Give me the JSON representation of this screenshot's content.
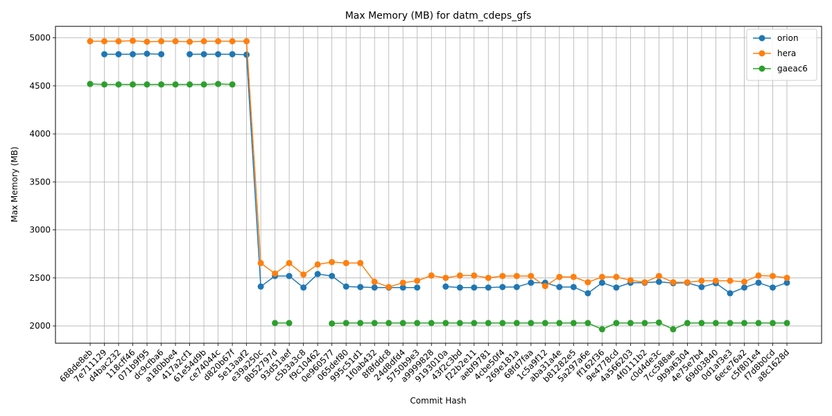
{
  "chart_data": {
    "type": "line",
    "title": "Max Memory (MB) for datm_cdeps_gfs",
    "xlabel": "Commit Hash",
    "ylabel": "Max Memory (MB)",
    "ylim": [
      1820,
      5120
    ],
    "yticks": [
      2000,
      2500,
      3000,
      3500,
      4000,
      4500,
      5000
    ],
    "grid": true,
    "legend_position": "top-right",
    "categories": [
      "688de8eb",
      "7e711129",
      "d4bac232",
      "118cff46",
      "071b9f95",
      "dc9cfba6",
      "a180bbe4",
      "417a2cf1",
      "61e54d9b",
      "ce74044c",
      "d820b67f",
      "5e13aaf2",
      "e39a250c",
      "8b52797d",
      "93d51aef",
      "c5b3a3c8",
      "f9c10462",
      "0e960577",
      "065def80",
      "995c51d1",
      "1f0ab432",
      "8f8fddc8",
      "24d8dfd4",
      "5750b9e3",
      "a9999828",
      "9193010a",
      "43f2c3bd",
      "f22b2e11",
      "aebf9781",
      "4cbe50f4",
      "269e181a",
      "68fd7faa",
      "1c5a9f12",
      "aba31a4e",
      "b81282e5",
      "5a297a6e",
      "ff162f36",
      "9e4778cd",
      "4a566203",
      "4f0111b2",
      "c0d4de3c",
      "7cc588ae",
      "9b9a6304",
      "4e75e7b4",
      "69d03840",
      "0d1af3e3",
      "6ece76a2",
      "c5f801e4",
      "f7d8b0cd",
      "a8c1628d"
    ],
    "series": [
      {
        "name": "orion",
        "color": "#1f77b4",
        "values": [
          null,
          4830,
          4830,
          4830,
          4835,
          4830,
          null,
          4830,
          4830,
          4830,
          4830,
          4825,
          2410,
          2520,
          2520,
          2400,
          2540,
          2520,
          2410,
          2405,
          2400,
          2400,
          2400,
          2400,
          null,
          2410,
          2400,
          2400,
          2400,
          2405,
          2405,
          2450,
          2450,
          2405,
          2405,
          2340,
          2450,
          2400,
          2450,
          2450,
          2460,
          2445,
          2450,
          2405,
          2445,
          2340,
          2400,
          2450,
          2400,
          2450
        ]
      },
      {
        "name": "hera",
        "color": "#ff7f0e",
        "values": [
          4965,
          4965,
          4965,
          4970,
          4960,
          4965,
          4965,
          4960,
          4965,
          4965,
          4965,
          4965,
          2655,
          2545,
          2655,
          2535,
          2640,
          2665,
          2655,
          2655,
          2460,
          2405,
          2450,
          2470,
          2525,
          2500,
          2525,
          2525,
          2500,
          2520,
          2520,
          2520,
          2415,
          2510,
          2510,
          2455,
          2510,
          2510,
          2475,
          2455,
          2520,
          2455,
          2455,
          2470,
          2470,
          2470,
          2460,
          2525,
          2520,
          2500
        ]
      },
      {
        "name": "gaeac6",
        "color": "#2ca02c",
        "values": [
          4520,
          4515,
          4515,
          4515,
          4515,
          4515,
          4515,
          4515,
          4515,
          4520,
          4515,
          null,
          null,
          2030,
          2030,
          null,
          null,
          2025,
          2030,
          2030,
          2030,
          2030,
          2030,
          2030,
          2030,
          2030,
          2030,
          2030,
          2030,
          2030,
          2030,
          2030,
          2030,
          2030,
          2030,
          2030,
          1965,
          2030,
          2030,
          2030,
          2035,
          1965,
          2030,
          2030,
          2030,
          2030,
          2030,
          2030,
          2030,
          2030
        ]
      }
    ]
  }
}
